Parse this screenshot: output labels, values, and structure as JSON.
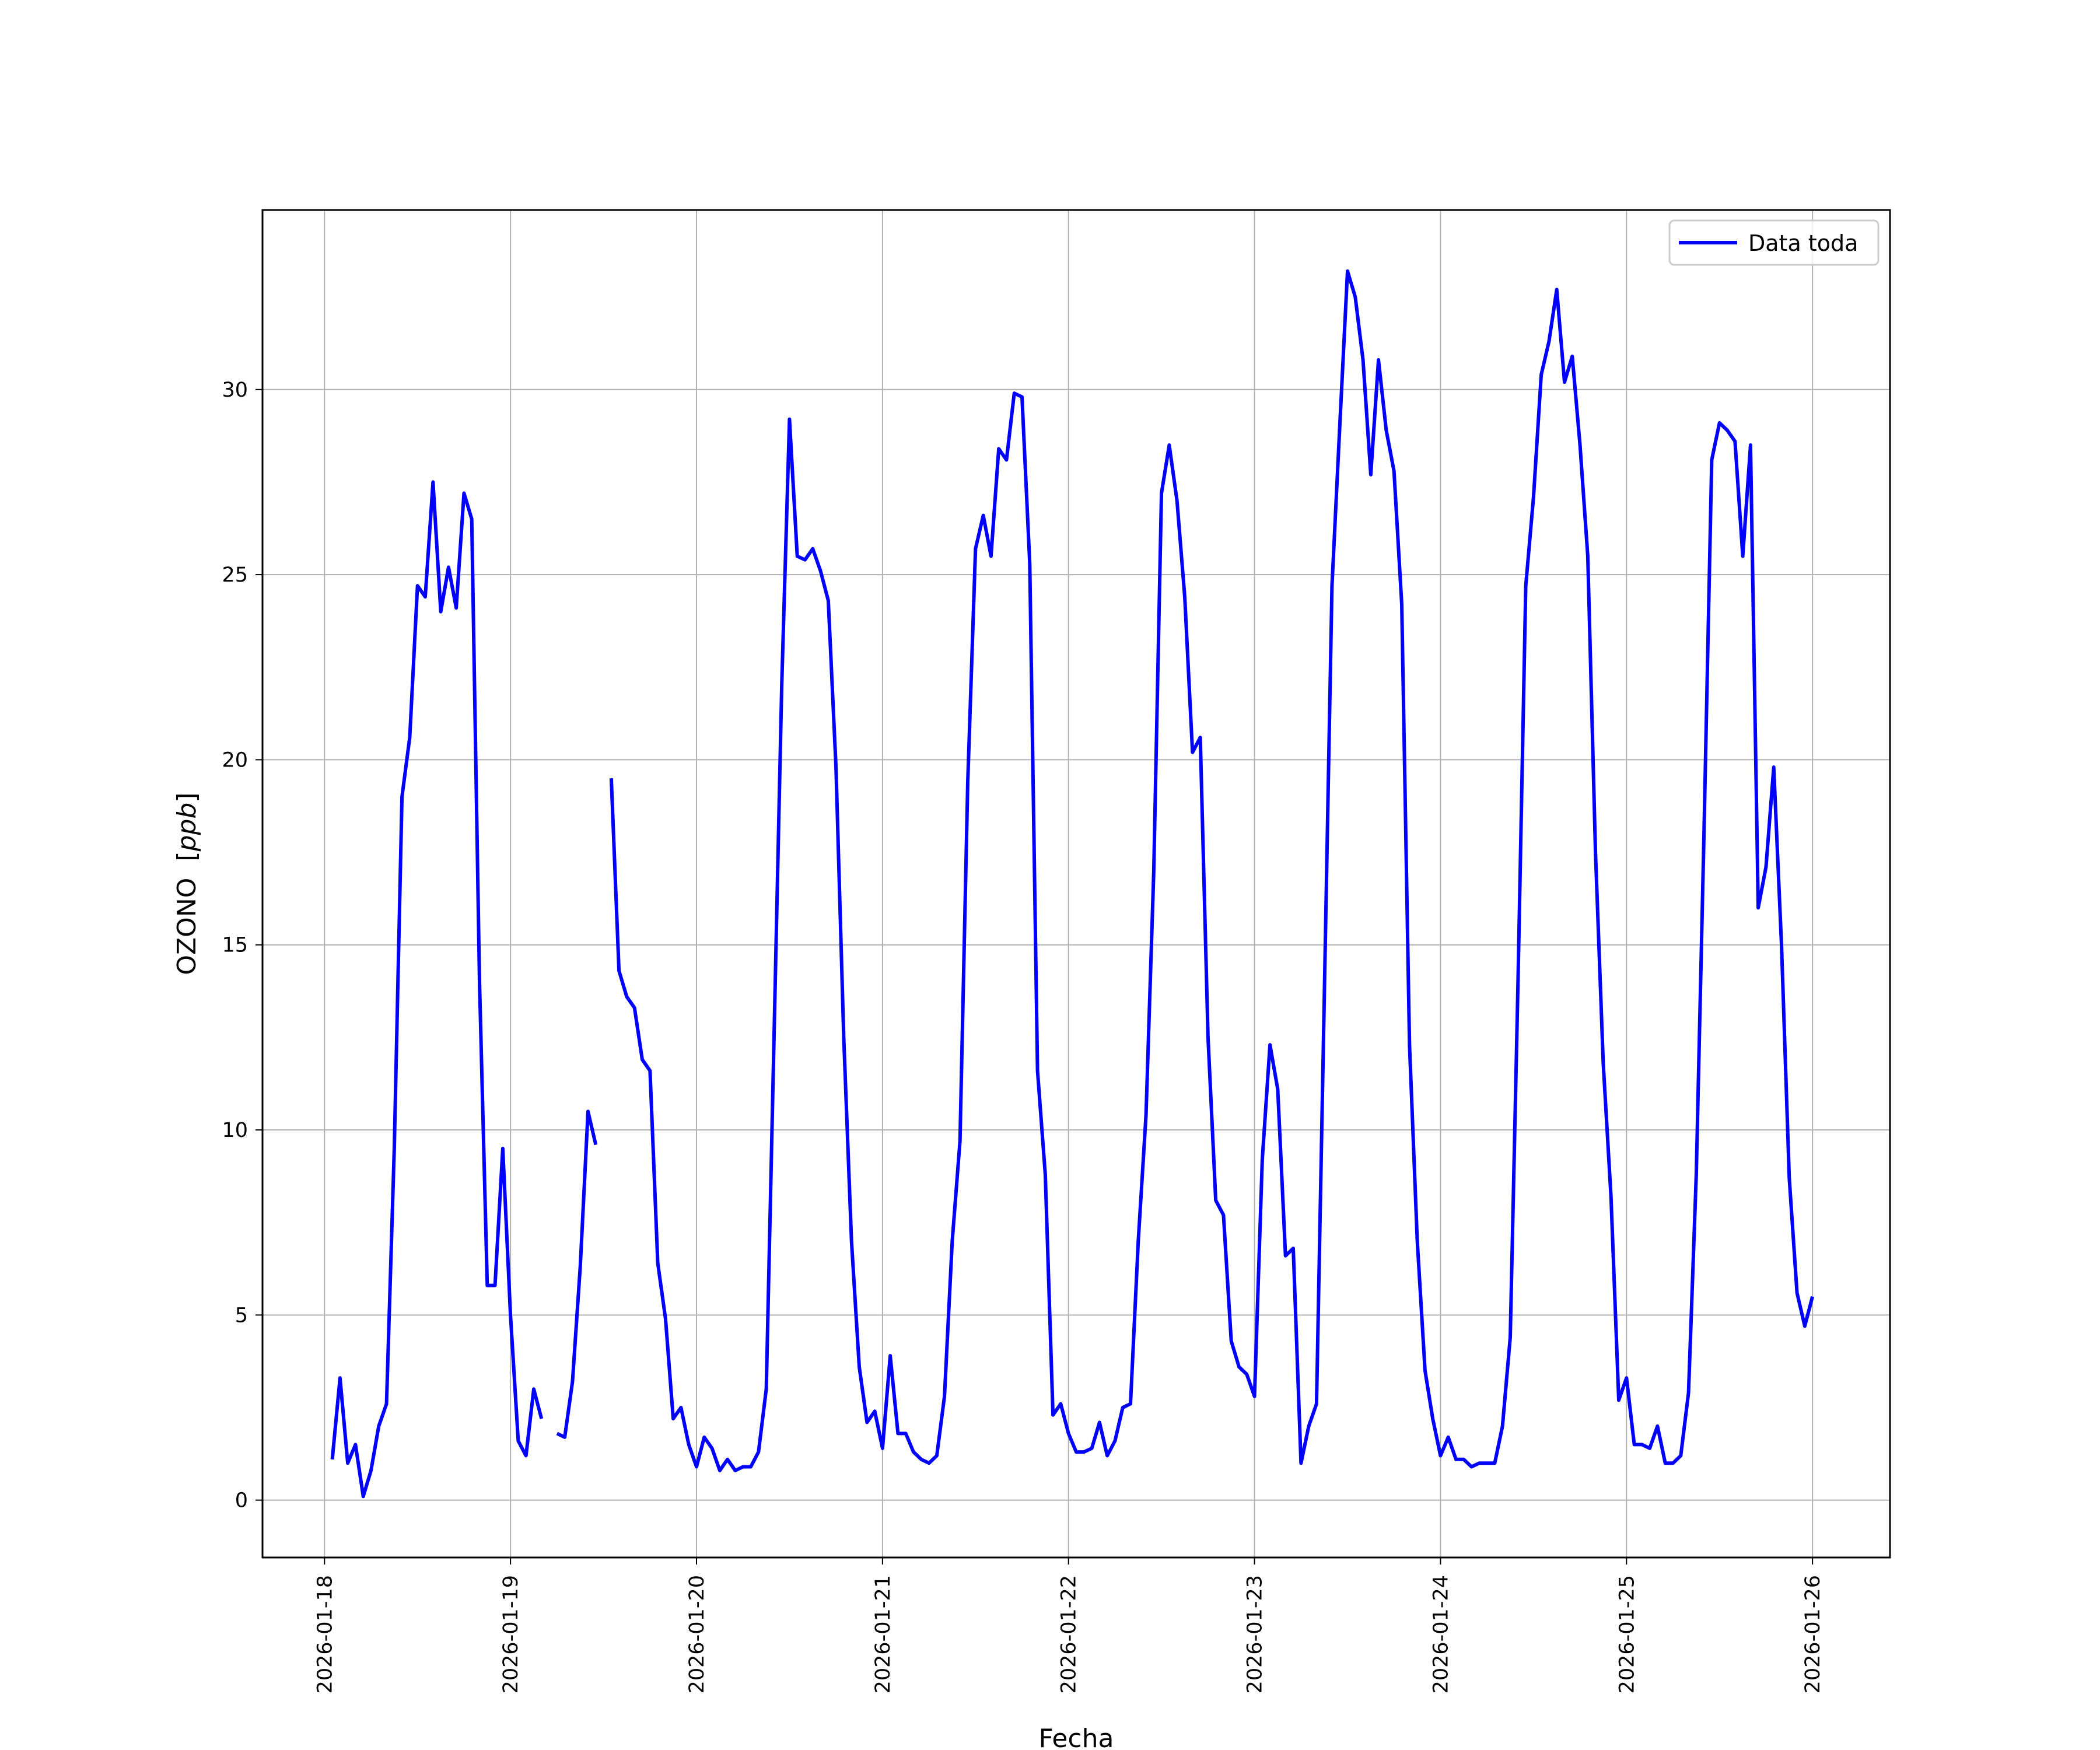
{
  "chart_data": {
    "type": "line",
    "xlabel": "Fecha",
    "ylabel": "OZONO [ppb]",
    "ylabel_main": "OZONO",
    "ylabel_unit": "ppb",
    "xlim": [
      "2026-01-17T16:00",
      "2026-01-26T10:00"
    ],
    "ylim": [
      -1.55,
      34.85
    ],
    "x_ticks": [
      "2026-01-18",
      "2026-01-19",
      "2026-01-20",
      "2026-01-21",
      "2026-01-22",
      "2026-01-23",
      "2026-01-24",
      "2026-01-25",
      "2026-01-26"
    ],
    "y_ticks": [
      0,
      5,
      10,
      15,
      20,
      25,
      30
    ],
    "grid": true,
    "legend": {
      "position": "top-right",
      "entries": [
        "Data toda"
      ]
    },
    "series": [
      {
        "name": "Data toda",
        "color": "#0000ff",
        "points": [
          [
            "2026-01-18T01:00",
            1.1
          ],
          [
            "2026-01-18T02:00",
            3.3
          ],
          [
            "2026-01-18T03:00",
            1.0
          ],
          [
            "2026-01-18T04:00",
            1.5
          ],
          [
            "2026-01-18T05:00",
            0.1
          ],
          [
            "2026-01-18T06:00",
            0.8
          ],
          [
            "2026-01-18T07:00",
            2.0
          ],
          [
            "2026-01-18T08:00",
            2.6
          ],
          [
            "2026-01-18T09:00",
            9.5
          ],
          [
            "2026-01-18T10:00",
            19.0
          ],
          [
            "2026-01-18T11:00",
            20.6
          ],
          [
            "2026-01-18T12:00",
            24.7
          ],
          [
            "2026-01-18T13:00",
            24.4
          ],
          [
            "2026-01-18T14:00",
            27.5
          ],
          [
            "2026-01-18T15:00",
            24.0
          ],
          [
            "2026-01-18T16:00",
            25.2
          ],
          [
            "2026-01-18T17:00",
            24.1
          ],
          [
            "2026-01-18T18:00",
            27.2
          ],
          [
            "2026-01-18T19:00",
            26.5
          ],
          [
            "2026-01-18T20:00",
            14.0
          ],
          [
            "2026-01-18T21:00",
            5.8
          ],
          [
            "2026-01-18T22:00",
            5.8
          ],
          [
            "2026-01-18T23:00",
            9.5
          ],
          [
            "2026-01-19T00:00",
            5.0
          ],
          [
            "2026-01-19T01:00",
            1.6
          ],
          [
            "2026-01-19T02:00",
            1.2
          ],
          [
            "2026-01-19T03:00",
            3.0
          ],
          [
            "2026-01-19T04:00",
            2.2
          ],
          null,
          [
            "2026-01-19T06:00",
            1.8
          ],
          [
            "2026-01-19T07:00",
            1.7
          ],
          [
            "2026-01-19T08:00",
            3.2
          ],
          [
            "2026-01-19T09:00",
            6.3
          ],
          [
            "2026-01-19T10:00",
            10.5
          ],
          [
            "2026-01-19T11:00",
            9.6
          ],
          null,
          [
            "2026-01-19T13:00",
            19.5
          ],
          [
            "2026-01-19T14:00",
            14.3
          ],
          [
            "2026-01-19T15:00",
            13.6
          ],
          [
            "2026-01-19T16:00",
            13.3
          ],
          [
            "2026-01-19T17:00",
            11.9
          ],
          [
            "2026-01-19T18:00",
            11.6
          ],
          [
            "2026-01-19T19:00",
            6.4
          ],
          [
            "2026-01-19T20:00",
            4.9
          ],
          [
            "2026-01-19T21:00",
            2.2
          ],
          [
            "2026-01-19T22:00",
            2.5
          ],
          [
            "2026-01-19T23:00",
            1.5
          ],
          [
            "2026-01-20T00:00",
            0.9
          ],
          [
            "2026-01-20T01:00",
            1.7
          ],
          [
            "2026-01-20T02:00",
            1.4
          ],
          [
            "2026-01-20T03:00",
            0.8
          ],
          [
            "2026-01-20T04:00",
            1.1
          ],
          [
            "2026-01-20T05:00",
            0.8
          ],
          [
            "2026-01-20T06:00",
            0.9
          ],
          [
            "2026-01-20T07:00",
            0.9
          ],
          [
            "2026-01-20T08:00",
            1.3
          ],
          [
            "2026-01-20T09:00",
            3.0
          ],
          [
            "2026-01-20T10:00",
            12.5
          ],
          [
            "2026-01-20T11:00",
            22.0
          ],
          [
            "2026-01-20T12:00",
            29.2
          ],
          [
            "2026-01-20T13:00",
            25.5
          ],
          [
            "2026-01-20T14:00",
            25.4
          ],
          [
            "2026-01-20T15:00",
            25.7
          ],
          [
            "2026-01-20T16:00",
            25.1
          ],
          [
            "2026-01-20T17:00",
            24.3
          ],
          [
            "2026-01-20T18:00",
            19.8
          ],
          [
            "2026-01-20T19:00",
            12.5
          ],
          [
            "2026-01-20T20:00",
            7.0
          ],
          [
            "2026-01-20T21:00",
            3.6
          ],
          [
            "2026-01-20T22:00",
            2.1
          ],
          [
            "2026-01-20T23:00",
            2.4
          ],
          [
            "2026-01-21T00:00",
            1.4
          ],
          [
            "2026-01-21T01:00",
            3.9
          ],
          [
            "2026-01-21T02:00",
            1.8
          ],
          [
            "2026-01-21T03:00",
            1.8
          ],
          [
            "2026-01-21T04:00",
            1.3
          ],
          [
            "2026-01-21T05:00",
            1.1
          ],
          [
            "2026-01-21T06:00",
            1.0
          ],
          [
            "2026-01-21T07:00",
            1.2
          ],
          [
            "2026-01-21T08:00",
            2.8
          ],
          [
            "2026-01-21T09:00",
            7.0
          ],
          [
            "2026-01-21T10:00",
            9.7
          ],
          [
            "2026-01-21T11:00",
            19.4
          ],
          [
            "2026-01-21T12:00",
            25.7
          ],
          [
            "2026-01-21T13:00",
            26.6
          ],
          [
            "2026-01-21T14:00",
            25.5
          ],
          [
            "2026-01-21T15:00",
            28.4
          ],
          [
            "2026-01-21T16:00",
            28.1
          ],
          [
            "2026-01-21T17:00",
            29.9
          ],
          [
            "2026-01-21T18:00",
            29.8
          ],
          [
            "2026-01-21T19:00",
            25.3
          ],
          [
            "2026-01-21T20:00",
            11.6
          ],
          [
            "2026-01-21T21:00",
            8.8
          ],
          [
            "2026-01-21T22:00",
            2.3
          ],
          [
            "2026-01-21T23:00",
            2.6
          ],
          [
            "2026-01-22T00:00",
            1.8
          ],
          [
            "2026-01-22T01:00",
            1.3
          ],
          [
            "2026-01-22T02:00",
            1.3
          ],
          [
            "2026-01-22T03:00",
            1.4
          ],
          [
            "2026-01-22T04:00",
            2.1
          ],
          [
            "2026-01-22T05:00",
            1.2
          ],
          [
            "2026-01-22T06:00",
            1.6
          ],
          [
            "2026-01-22T07:00",
            2.5
          ],
          [
            "2026-01-22T08:00",
            2.6
          ],
          [
            "2026-01-22T09:00",
            7.0
          ],
          [
            "2026-01-22T10:00",
            10.4
          ],
          [
            "2026-01-22T11:00",
            17.0
          ],
          [
            "2026-01-22T12:00",
            27.2
          ],
          [
            "2026-01-22T13:00",
            28.5
          ],
          [
            "2026-01-22T14:00",
            27.0
          ],
          [
            "2026-01-22T15:00",
            24.4
          ],
          [
            "2026-01-22T16:00",
            20.2
          ],
          [
            "2026-01-22T17:00",
            20.6
          ],
          [
            "2026-01-22T18:00",
            12.5
          ],
          [
            "2026-01-22T19:00",
            8.1
          ],
          [
            "2026-01-22T20:00",
            7.7
          ],
          [
            "2026-01-22T21:00",
            4.3
          ],
          [
            "2026-01-22T22:00",
            3.6
          ],
          [
            "2026-01-22T23:00",
            3.4
          ],
          [
            "2026-01-23T00:00",
            2.8
          ],
          [
            "2026-01-23T01:00",
            9.2
          ],
          [
            "2026-01-23T02:00",
            12.3
          ],
          [
            "2026-01-23T03:00",
            11.1
          ],
          [
            "2026-01-23T04:00",
            6.6
          ],
          [
            "2026-01-23T05:00",
            6.8
          ],
          [
            "2026-01-23T06:00",
            1.0
          ],
          [
            "2026-01-23T07:00",
            2.0
          ],
          [
            "2026-01-23T08:00",
            2.6
          ],
          [
            "2026-01-23T09:00",
            13.5
          ],
          [
            "2026-01-23T10:00",
            24.7
          ],
          [
            "2026-01-23T11:00",
            29.0
          ],
          [
            "2026-01-23T12:00",
            33.2
          ],
          [
            "2026-01-23T13:00",
            32.5
          ],
          [
            "2026-01-23T14:00",
            30.8
          ],
          [
            "2026-01-23T15:00",
            27.7
          ],
          [
            "2026-01-23T16:00",
            30.8
          ],
          [
            "2026-01-23T17:00",
            28.9
          ],
          [
            "2026-01-23T18:00",
            27.8
          ],
          [
            "2026-01-23T19:00",
            24.2
          ],
          [
            "2026-01-23T20:00",
            12.3
          ],
          [
            "2026-01-23T21:00",
            7.0
          ],
          [
            "2026-01-23T22:00",
            3.5
          ],
          [
            "2026-01-23T23:00",
            2.2
          ],
          [
            "2026-01-24T00:00",
            1.2
          ],
          [
            "2026-01-24T01:00",
            1.7
          ],
          [
            "2026-01-24T02:00",
            1.1
          ],
          [
            "2026-01-24T03:00",
            1.1
          ],
          [
            "2026-01-24T04:00",
            0.9
          ],
          [
            "2026-01-24T05:00",
            1.0
          ],
          [
            "2026-01-24T06:00",
            1.0
          ],
          [
            "2026-01-24T07:00",
            1.0
          ],
          [
            "2026-01-24T08:00",
            2.0
          ],
          [
            "2026-01-24T09:00",
            4.4
          ],
          [
            "2026-01-24T10:00",
            14.0
          ],
          [
            "2026-01-24T11:00",
            24.7
          ],
          [
            "2026-01-24T12:00",
            27.1
          ],
          [
            "2026-01-24T13:00",
            30.4
          ],
          [
            "2026-01-24T14:00",
            31.3
          ],
          [
            "2026-01-24T15:00",
            32.7
          ],
          [
            "2026-01-24T16:00",
            30.2
          ],
          [
            "2026-01-24T17:00",
            30.9
          ],
          [
            "2026-01-24T18:00",
            28.5
          ],
          [
            "2026-01-24T19:00",
            25.5
          ],
          [
            "2026-01-24T20:00",
            17.5
          ],
          [
            "2026-01-24T21:00",
            11.8
          ],
          [
            "2026-01-24T22:00",
            8.2
          ],
          [
            "2026-01-24T23:00",
            2.7
          ],
          [
            "2026-01-25T00:00",
            3.3
          ],
          [
            "2026-01-25T01:00",
            1.5
          ],
          [
            "2026-01-25T02:00",
            1.5
          ],
          [
            "2026-01-25T03:00",
            1.4
          ],
          [
            "2026-01-25T04:00",
            2.0
          ],
          [
            "2026-01-25T05:00",
            1.0
          ],
          [
            "2026-01-25T06:00",
            1.0
          ],
          [
            "2026-01-25T07:00",
            1.2
          ],
          [
            "2026-01-25T08:00",
            2.9
          ],
          [
            "2026-01-25T09:00",
            8.8
          ],
          [
            "2026-01-25T10:00",
            18.0
          ],
          [
            "2026-01-25T11:00",
            28.1
          ],
          [
            "2026-01-25T12:00",
            29.1
          ],
          [
            "2026-01-25T13:00",
            28.9
          ],
          [
            "2026-01-25T14:00",
            28.6
          ],
          [
            "2026-01-25T15:00",
            25.5
          ],
          [
            "2026-01-25T16:00",
            28.5
          ],
          [
            "2026-01-25T17:00",
            16.0
          ],
          [
            "2026-01-25T18:00",
            17.1
          ],
          [
            "2026-01-25T19:00",
            19.8
          ],
          [
            "2026-01-25T20:00",
            15.0
          ],
          [
            "2026-01-25T21:00",
            8.7
          ],
          [
            "2026-01-25T22:00",
            5.6
          ],
          [
            "2026-01-25T23:00",
            4.7
          ],
          [
            "2026-01-26T00:00",
            5.5
          ]
        ]
      }
    ]
  }
}
